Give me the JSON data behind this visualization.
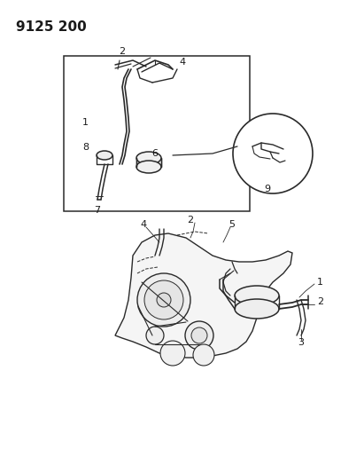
{
  "title_number": "9125 200",
  "background_color": "#ffffff",
  "line_color": "#2a2a2a",
  "text_color": "#1a1a1a",
  "fig_width": 4.11,
  "fig_height": 5.33,
  "dpi": 100
}
